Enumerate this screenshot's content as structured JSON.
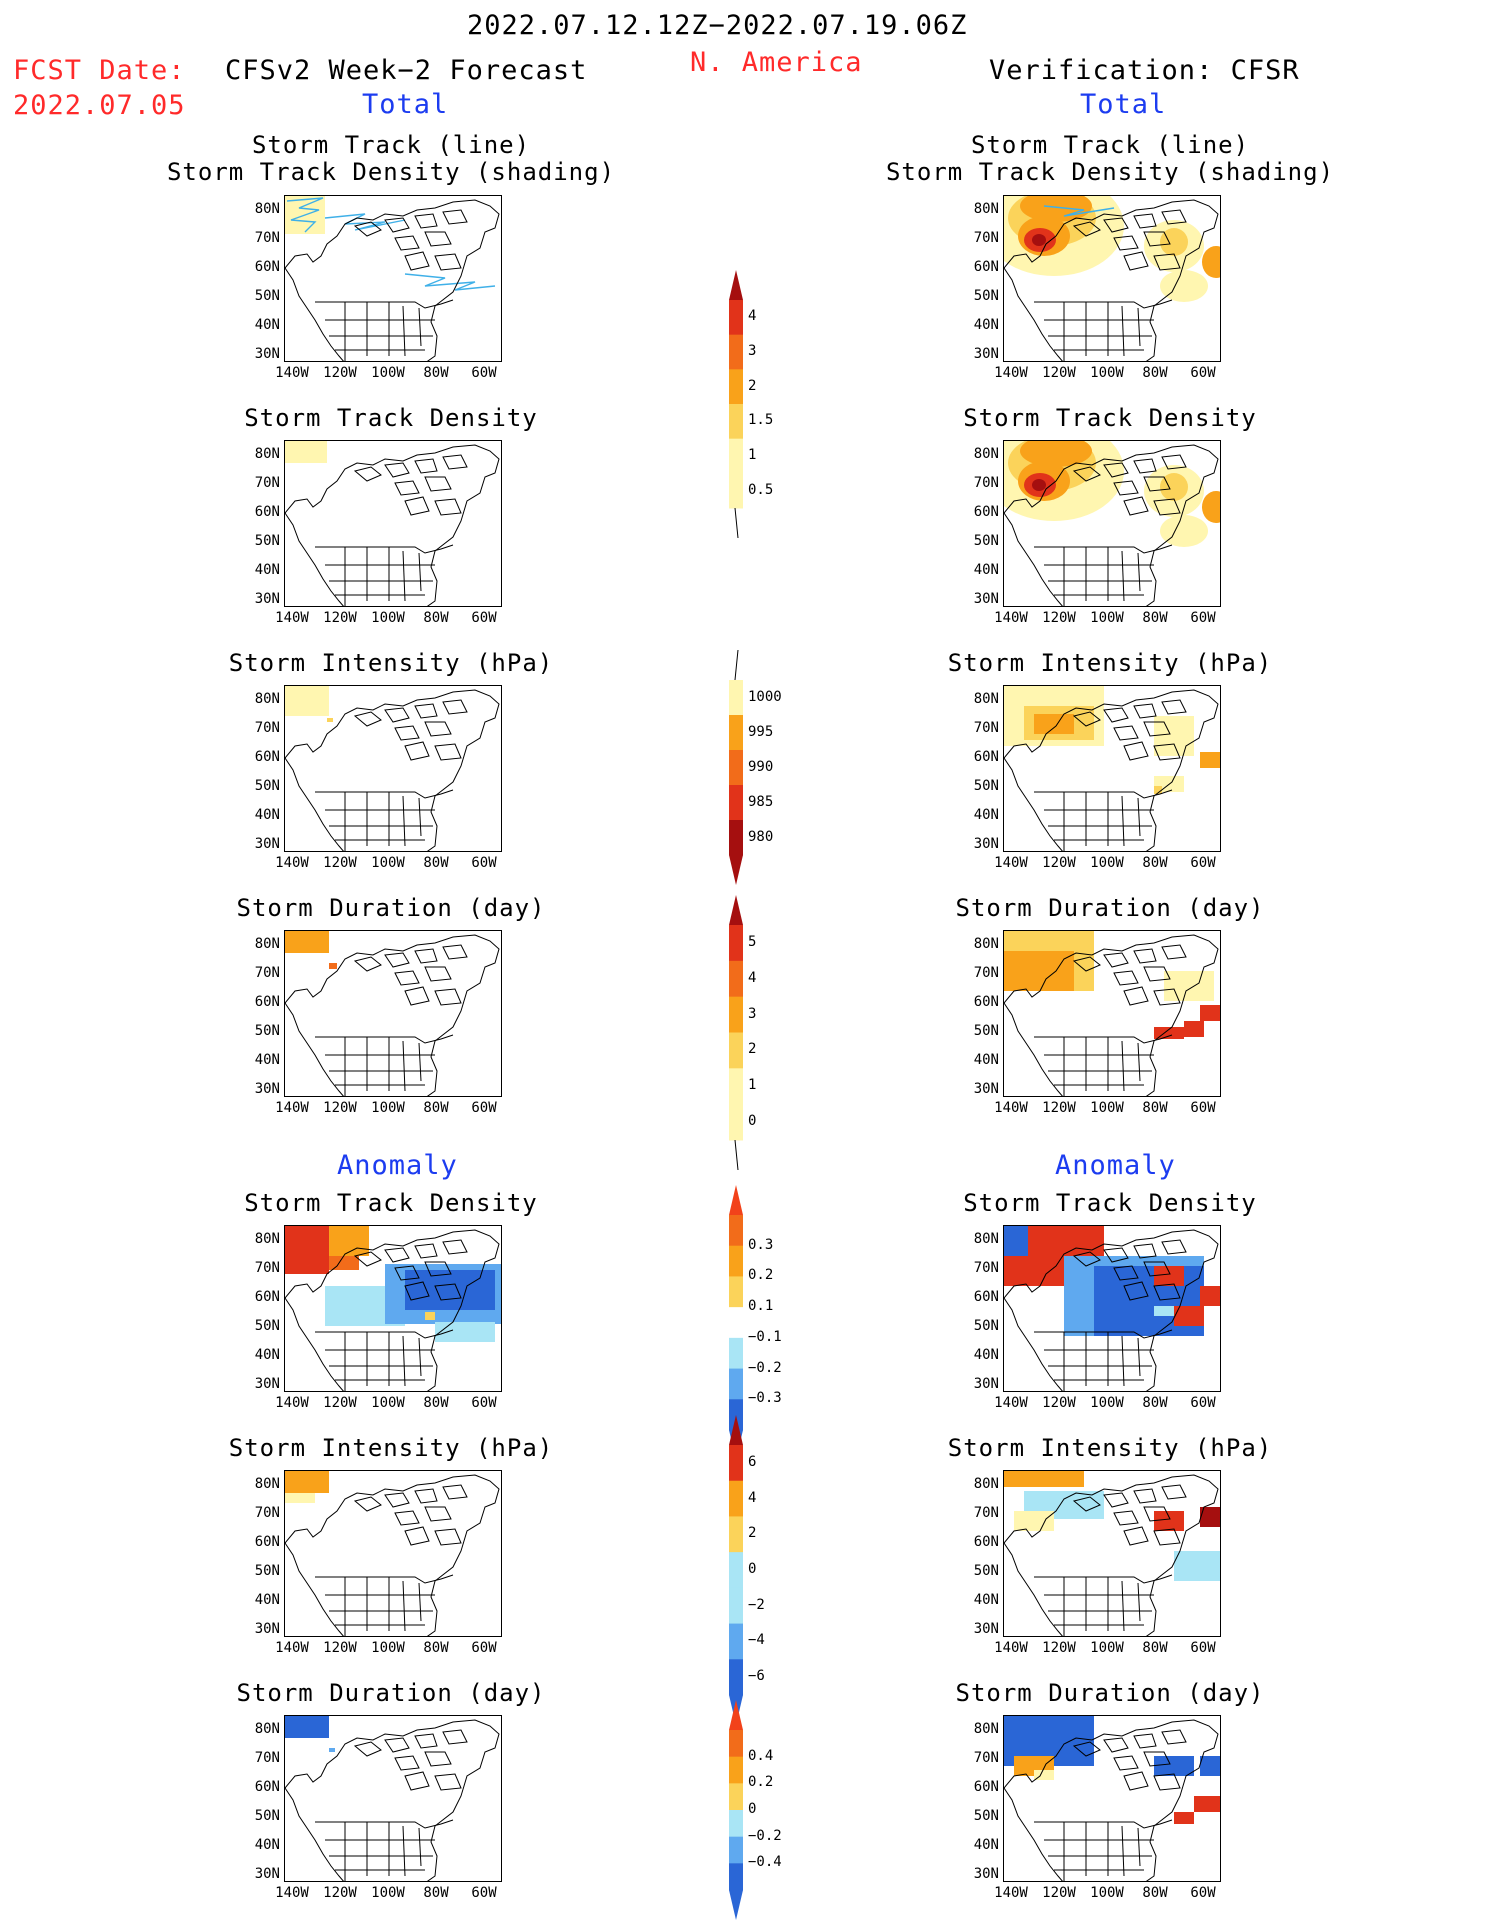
{
  "header": {
    "period": "2022.07.12.12Z−2022.07.19.06Z",
    "region": "N. America",
    "fcst_label": "FCST Date:",
    "fcst_date": "2022.07.05",
    "left_title": "CFSv2 Week−2 Forecast",
    "right_title": "Verification: CFSR",
    "left_sub": "Total",
    "right_sub": "Total",
    "left_anom": "Anomaly",
    "right_anom": "Anomaly"
  },
  "panel_titles": {
    "storm_track_line": "Storm Track (line)",
    "storm_track_shading": "Storm Track Density (shading)",
    "storm_track_density": "Storm Track Density",
    "storm_intensity": "Storm Intensity (hPa)",
    "storm_duration": "Storm Duration (day)"
  },
  "axes": {
    "lat_ticks": [
      "80N",
      "70N",
      "60N",
      "50N",
      "40N",
      "30N"
    ],
    "lon_ticks": [
      "140W",
      "120W",
      "100W",
      "80W",
      "60W"
    ]
  },
  "colorbars": [
    {
      "name": "track-density-total",
      "levels": [
        "4",
        "3",
        "2",
        "1.5",
        "1",
        "0.5"
      ]
    },
    {
      "name": "intensity-total",
      "levels": [
        "1000",
        "995",
        "990",
        "985",
        "980"
      ]
    },
    {
      "name": "duration-total",
      "levels": [
        "5",
        "4",
        "3",
        "2",
        "1",
        "0"
      ]
    },
    {
      "name": "track-density-anomaly",
      "levels": [
        "0.3",
        "0.2",
        "0.1",
        "−0.1",
        "−0.2",
        "−0.3"
      ]
    },
    {
      "name": "intensity-anomaly",
      "levels": [
        "6",
        "4",
        "2",
        "0",
        "−2",
        "−4",
        "−6"
      ]
    },
    {
      "name": "duration-anomaly",
      "levels": [
        "0.4",
        "0.2",
        "0",
        "−0.2",
        "−0.4"
      ]
    }
  ],
  "colors": {
    "text_red": "#ff2a2a",
    "text_blue": "#1c3cf0",
    "shade_light_yellow": "#fff6b0",
    "shade_yellow": "#fbd35a",
    "shade_orange": "#f9a21a",
    "shade_dark_orange": "#f26c1a",
    "shade_red": "#e1331a",
    "shade_dark_red": "#a50f0f",
    "shade_light_blue": "#a9e5f5",
    "shade_blue": "#5fa9ef",
    "shade_dark_blue": "#2a66d6"
  },
  "chart_data": [
    {
      "type": "heatmap",
      "name": "forecast-storm-track",
      "title": "Storm Track (line) / Storm Track Density (shading)",
      "xlabel": "",
      "ylabel": ""
    },
    {
      "type": "heatmap",
      "name": "forecast-track-density",
      "title": "Storm Track Density"
    },
    {
      "type": "heatmap",
      "name": "forecast-intensity",
      "title": "Storm Intensity (hPa)"
    },
    {
      "type": "heatmap",
      "name": "forecast-duration",
      "title": "Storm Duration (day)"
    },
    {
      "type": "heatmap",
      "name": "forecast-anom-track-density",
      "title": "Storm Track Density"
    },
    {
      "type": "heatmap",
      "name": "forecast-anom-intensity",
      "title": "Storm Intensity (hPa)"
    },
    {
      "type": "heatmap",
      "name": "forecast-anom-duration",
      "title": "Storm Duration (day)"
    },
    {
      "type": "heatmap",
      "name": "cfsr-storm-track",
      "title": "Storm Track (line) / Storm Track Density (shading)"
    },
    {
      "type": "heatmap",
      "name": "cfsr-track-density",
      "title": "Storm Track Density"
    },
    {
      "type": "heatmap",
      "name": "cfsr-intensity",
      "title": "Storm Intensity (hPa)"
    },
    {
      "type": "heatmap",
      "name": "cfsr-duration",
      "title": "Storm Duration (day)"
    },
    {
      "type": "heatmap",
      "name": "cfsr-anom-track-density",
      "title": "Storm Track Density"
    },
    {
      "type": "heatmap",
      "name": "cfsr-anom-intensity",
      "title": "Storm Intensity (hPa)"
    },
    {
      "type": "heatmap",
      "name": "cfsr-anom-duration",
      "title": "Storm Duration (day)"
    }
  ]
}
